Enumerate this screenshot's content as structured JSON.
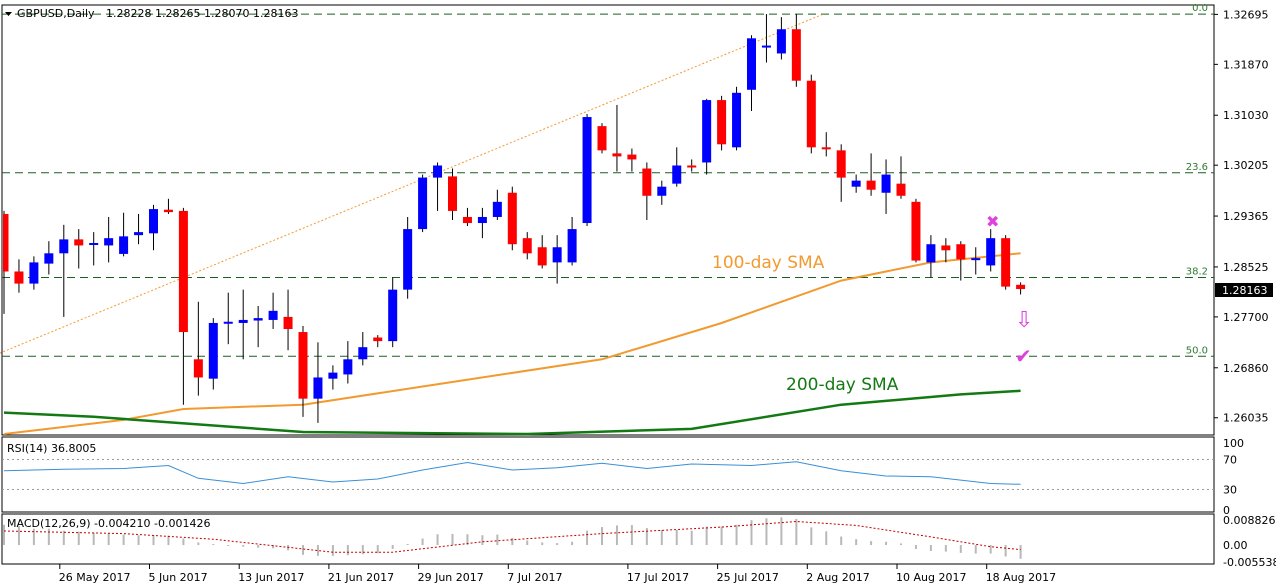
{
  "header": {
    "symbol": "GBPUSD,Daily",
    "ohlc": "1.28228 1.28265 1.28070 1.28163",
    "rsi_label": "RSI(14) 36.8005",
    "macd_label": "MACD(12,26,9) -0.004210 -0.001426"
  },
  "price_label": "1.28163",
  "annotations": {
    "sma100": "100-day SMA",
    "sma200": "200-day SMA",
    "cross_symbol": "✖",
    "arrow_symbol": "⇩",
    "check_symbol": "✔"
  },
  "colors": {
    "bull": "#0000ff",
    "bear": "#ff0000",
    "sma100": "#f29a30",
    "sma200": "#137a13",
    "fib": "#1b5e20",
    "rsi": "#3a8fd6",
    "macd_signal": "#c00000",
    "cross": "#e040e0",
    "arrow": "#e040e0",
    "check": "#e040e0"
  },
  "chart_data": [
    {
      "type": "candlestick",
      "title": "GBPUSD,Daily",
      "ylim": [
        1.2575,
        1.3285
      ],
      "yticks": [
        1.32695,
        1.3187,
        1.3103,
        1.30205,
        1.29365,
        1.28525,
        1.277,
        1.2686,
        1.26035
      ],
      "ytick_labels": [
        "1.32695",
        "1.31870",
        "1.31030",
        "1.30205",
        "1.29365",
        "1.28525",
        "1.27700",
        "1.26860",
        "1.26035"
      ],
      "x_labels": [
        {
          "index": 4,
          "label": "26 May 2017"
        },
        {
          "index": 10,
          "label": "5 Jun 2017"
        },
        {
          "index": 16,
          "label": "13 Jun 2017"
        },
        {
          "index": 22,
          "label": "21 Jun 2017"
        },
        {
          "index": 28,
          "label": "29 Jun 2017"
        },
        {
          "index": 34,
          "label": "7 Jul 2017"
        },
        {
          "index": 42,
          "label": "17 Jul 2017"
        },
        {
          "index": 48,
          "label": "25 Jul 2017"
        },
        {
          "index": 54,
          "label": "2 Aug 2017"
        },
        {
          "index": 60,
          "label": "10 Aug 2017"
        },
        {
          "index": 66,
          "label": "18 Aug 2017"
        }
      ],
      "candles": [
        {
          "o": 1.294,
          "h": 1.2945,
          "l": 1.2775,
          "c": 1.2845
        },
        {
          "o": 1.2845,
          "h": 1.2865,
          "l": 1.281,
          "c": 1.2825
        },
        {
          "o": 1.2825,
          "h": 1.287,
          "l": 1.2815,
          "c": 1.286
        },
        {
          "o": 1.2858,
          "h": 1.2895,
          "l": 1.284,
          "c": 1.2875
        },
        {
          "o": 1.2875,
          "h": 1.2922,
          "l": 1.277,
          "c": 1.2898
        },
        {
          "o": 1.2898,
          "h": 1.2915,
          "l": 1.285,
          "c": 1.2888
        },
        {
          "o": 1.289,
          "h": 1.291,
          "l": 1.2855,
          "c": 1.2892
        },
        {
          "o": 1.2888,
          "h": 1.2935,
          "l": 1.286,
          "c": 1.29
        },
        {
          "o": 1.2874,
          "h": 1.2942,
          "l": 1.287,
          "c": 1.2903
        },
        {
          "o": 1.2905,
          "h": 1.294,
          "l": 1.289,
          "c": 1.291
        },
        {
          "o": 1.2908,
          "h": 1.2955,
          "l": 1.288,
          "c": 1.2948
        },
        {
          "o": 1.2947,
          "h": 1.2965,
          "l": 1.294,
          "c": 1.2943
        },
        {
          "o": 1.2945,
          "h": 1.295,
          "l": 1.2625,
          "c": 1.2745
        },
        {
          "o": 1.27,
          "h": 1.2795,
          "l": 1.264,
          "c": 1.267
        },
        {
          "o": 1.2668,
          "h": 1.2768,
          "l": 1.265,
          "c": 1.276
        },
        {
          "o": 1.276,
          "h": 1.281,
          "l": 1.2725,
          "c": 1.2762
        },
        {
          "o": 1.276,
          "h": 1.2815,
          "l": 1.27,
          "c": 1.2765
        },
        {
          "o": 1.2764,
          "h": 1.2788,
          "l": 1.272,
          "c": 1.2768
        },
        {
          "o": 1.2765,
          "h": 1.281,
          "l": 1.275,
          "c": 1.278
        },
        {
          "o": 1.277,
          "h": 1.2815,
          "l": 1.2715,
          "c": 1.275
        },
        {
          "o": 1.2745,
          "h": 1.2755,
          "l": 1.2605,
          "c": 1.2635
        },
        {
          "o": 1.2635,
          "h": 1.2728,
          "l": 1.2595,
          "c": 1.267
        },
        {
          "o": 1.2668,
          "h": 1.269,
          "l": 1.265,
          "c": 1.2678
        },
        {
          "o": 1.2675,
          "h": 1.273,
          "l": 1.266,
          "c": 1.27
        },
        {
          "o": 1.27,
          "h": 1.2745,
          "l": 1.269,
          "c": 1.272
        },
        {
          "o": 1.2736,
          "h": 1.274,
          "l": 1.272,
          "c": 1.273
        },
        {
          "o": 1.273,
          "h": 1.2835,
          "l": 1.272,
          "c": 1.2815
        },
        {
          "o": 1.2815,
          "h": 1.2935,
          "l": 1.28,
          "c": 1.2915
        },
        {
          "o": 1.2915,
          "h": 1.3005,
          "l": 1.291,
          "c": 1.3
        },
        {
          "o": 1.3,
          "h": 1.3025,
          "l": 1.2945,
          "c": 1.302
        },
        {
          "o": 1.3002,
          "h": 1.3015,
          "l": 1.293,
          "c": 1.2945
        },
        {
          "o": 1.2935,
          "h": 1.295,
          "l": 1.292,
          "c": 1.2925
        },
        {
          "o": 1.2925,
          "h": 1.295,
          "l": 1.29,
          "c": 1.2935
        },
        {
          "o": 1.2935,
          "h": 1.298,
          "l": 1.293,
          "c": 1.296
        },
        {
          "o": 1.2975,
          "h": 1.2985,
          "l": 1.288,
          "c": 1.289
        },
        {
          "o": 1.29,
          "h": 1.291,
          "l": 1.2865,
          "c": 1.2875
        },
        {
          "o": 1.2885,
          "h": 1.2905,
          "l": 1.285,
          "c": 1.2855
        },
        {
          "o": 1.286,
          "h": 1.2905,
          "l": 1.2825,
          "c": 1.2885
        },
        {
          "o": 1.286,
          "h": 1.2935,
          "l": 1.2855,
          "c": 1.2915
        },
        {
          "o": 1.2925,
          "h": 1.3105,
          "l": 1.292,
          "c": 1.31
        },
        {
          "o": 1.3085,
          "h": 1.309,
          "l": 1.304,
          "c": 1.3045
        },
        {
          "o": 1.304,
          "h": 1.312,
          "l": 1.301,
          "c": 1.3035
        },
        {
          "o": 1.3038,
          "h": 1.3048,
          "l": 1.301,
          "c": 1.303
        },
        {
          "o": 1.3015,
          "h": 1.3025,
          "l": 1.293,
          "c": 1.297
        },
        {
          "o": 1.297,
          "h": 1.2995,
          "l": 1.2955,
          "c": 1.2985
        },
        {
          "o": 1.299,
          "h": 1.305,
          "l": 1.2985,
          "c": 1.302
        },
        {
          "o": 1.302,
          "h": 1.303,
          "l": 1.301,
          "c": 1.3018
        },
        {
          "o": 1.3025,
          "h": 1.313,
          "l": 1.3005,
          "c": 1.3128
        },
        {
          "o": 1.3128,
          "h": 1.3135,
          "l": 1.3045,
          "c": 1.3055
        },
        {
          "o": 1.305,
          "h": 1.315,
          "l": 1.3045,
          "c": 1.314
        },
        {
          "o": 1.3145,
          "h": 1.3235,
          "l": 1.311,
          "c": 1.323
        },
        {
          "o": 1.3215,
          "h": 1.327,
          "l": 1.319,
          "c": 1.3218
        },
        {
          "o": 1.3205,
          "h": 1.3265,
          "l": 1.3195,
          "c": 1.3245
        },
        {
          "o": 1.3245,
          "h": 1.327,
          "l": 1.315,
          "c": 1.316
        },
        {
          "o": 1.316,
          "h": 1.317,
          "l": 1.304,
          "c": 1.305
        },
        {
          "o": 1.305,
          "h": 1.3075,
          "l": 1.3035,
          "c": 1.3048
        },
        {
          "o": 1.3045,
          "h": 1.3055,
          "l": 1.296,
          "c": 1.3
        },
        {
          "o": 1.2985,
          "h": 1.3005,
          "l": 1.2975,
          "c": 1.2995
        },
        {
          "o": 1.2995,
          "h": 1.304,
          "l": 1.297,
          "c": 1.298
        },
        {
          "o": 1.2975,
          "h": 1.303,
          "l": 1.294,
          "c": 1.3005
        },
        {
          "o": 1.299,
          "h": 1.3035,
          "l": 1.2965,
          "c": 1.297
        },
        {
          "o": 1.296,
          "h": 1.2965,
          "l": 1.286,
          "c": 1.2863
        },
        {
          "o": 1.286,
          "h": 1.2905,
          "l": 1.2835,
          "c": 1.289
        },
        {
          "o": 1.2888,
          "h": 1.29,
          "l": 1.286,
          "c": 1.288
        },
        {
          "o": 1.289,
          "h": 1.2895,
          "l": 1.283,
          "c": 1.2865
        },
        {
          "o": 1.2865,
          "h": 1.2885,
          "l": 1.284,
          "c": 1.2867
        },
        {
          "o": 1.2855,
          "h": 1.2915,
          "l": 1.2845,
          "c": 1.29
        },
        {
          "o": 1.29,
          "h": 1.2905,
          "l": 1.2815,
          "c": 1.282
        },
        {
          "o": 1.2823,
          "h": 1.2827,
          "l": 1.2807,
          "c": 1.2816
        }
      ],
      "sma100": [
        {
          "index": 0,
          "value": 1.256
        },
        {
          "index": 8,
          "value": 1.26
        },
        {
          "index": 12,
          "value": 1.2618
        },
        {
          "index": 20,
          "value": 1.2625
        },
        {
          "index": 28,
          "value": 1.2655
        },
        {
          "index": 40,
          "value": 1.27
        },
        {
          "index": 48,
          "value": 1.276
        },
        {
          "index": 56,
          "value": 1.283
        },
        {
          "index": 62,
          "value": 1.286
        },
        {
          "index": 68,
          "value": 1.2875
        }
      ],
      "sma200": [
        {
          "index": 0,
          "value": 1.2612
        },
        {
          "index": 6,
          "value": 1.2605
        },
        {
          "index": 20,
          "value": 1.258
        },
        {
          "index": 35,
          "value": 1.257
        },
        {
          "index": 46,
          "value": 1.2585
        },
        {
          "index": 56,
          "value": 1.2625
        },
        {
          "index": 64,
          "value": 1.2642
        },
        {
          "index": 68,
          "value": 1.2648
        }
      ],
      "trendline": [
        {
          "index": -0.3,
          "value": 1.271
        },
        {
          "index": 54.8,
          "value": 1.327
        }
      ],
      "fib_levels": [
        {
          "label": "0.0",
          "value": 1.327
        },
        {
          "label": "23.6",
          "value": 1.3008
        },
        {
          "label": "38.2",
          "value": 1.2835
        },
        {
          "label": "50.0",
          "value": 1.2705
        }
      ],
      "current_price": 1.28163
    },
    {
      "type": "line",
      "title": "RSI(14) 36.8005",
      "ylim": [
        0,
        100
      ],
      "yticks": [
        100,
        70,
        30,
        0
      ],
      "values": [
        [
          0,
          55
        ],
        [
          4,
          57
        ],
        [
          8,
          58
        ],
        [
          11,
          62
        ],
        [
          13,
          45
        ],
        [
          16,
          38
        ],
        [
          19,
          47
        ],
        [
          22,
          40
        ],
        [
          25,
          44
        ],
        [
          28,
          56
        ],
        [
          31,
          66
        ],
        [
          34,
          56
        ],
        [
          37,
          59
        ],
        [
          40,
          65
        ],
        [
          43,
          58
        ],
        [
          46,
          64
        ],
        [
          50,
          62
        ],
        [
          53,
          67
        ],
        [
          56,
          55
        ],
        [
          59,
          48
        ],
        [
          62,
          47
        ],
        [
          66,
          38
        ],
        [
          68,
          37
        ]
      ]
    },
    {
      "type": "bar",
      "title": "MACD(12,26,9) -0.004210 -0.001426",
      "ylim": [
        -0.0058,
        0.0095
      ],
      "yticks": [
        0.008826,
        0.0,
        -0.005538
      ],
      "ytick_labels": [
        "0.008826",
        "0.00",
        "-0.005538"
      ],
      "values": [
        0.0062,
        0.0058,
        0.005,
        0.005,
        0.0044,
        0.0041,
        0.0038,
        0.0036,
        0.0032,
        0.003,
        0.003,
        0.0029,
        0.002,
        0.0008,
        0.0003,
        -0.0001,
        -0.0005,
        -0.0008,
        -0.001,
        -0.0016,
        -0.003,
        -0.0033,
        -0.0033,
        -0.0031,
        -0.0028,
        -0.0025,
        -0.0012,
        0.0003,
        0.002,
        0.0033,
        0.0034,
        0.0033,
        0.003,
        0.0032,
        0.0022,
        0.0014,
        0.0008,
        0.0006,
        0.001,
        0.0044,
        0.0055,
        0.006,
        0.0061,
        0.0052,
        0.0046,
        0.0046,
        0.0044,
        0.0057,
        0.0057,
        0.0062,
        0.0076,
        0.0082,
        0.0085,
        0.008,
        0.0054,
        0.0042,
        0.0026,
        0.0018,
        0.0012,
        0.001,
        0.0005,
        -0.0012,
        -0.0018,
        -0.002,
        -0.0024,
        -0.0026,
        -0.0026,
        -0.0035,
        -0.0042
      ],
      "signal": [
        {
          "index": 0,
          "value": 0.0043
        },
        {
          "index": 8,
          "value": 0.0035
        },
        {
          "index": 14,
          "value": 0.0018
        },
        {
          "index": 22,
          "value": -0.0022
        },
        {
          "index": 26,
          "value": -0.0022
        },
        {
          "index": 32,
          "value": 0.001
        },
        {
          "index": 40,
          "value": 0.0035
        },
        {
          "index": 48,
          "value": 0.0055
        },
        {
          "index": 53,
          "value": 0.0072
        },
        {
          "index": 57,
          "value": 0.006
        },
        {
          "index": 62,
          "value": 0.0025
        },
        {
          "index": 66,
          "value": -0.0005
        },
        {
          "index": 68,
          "value": -0.0014
        }
      ]
    }
  ]
}
